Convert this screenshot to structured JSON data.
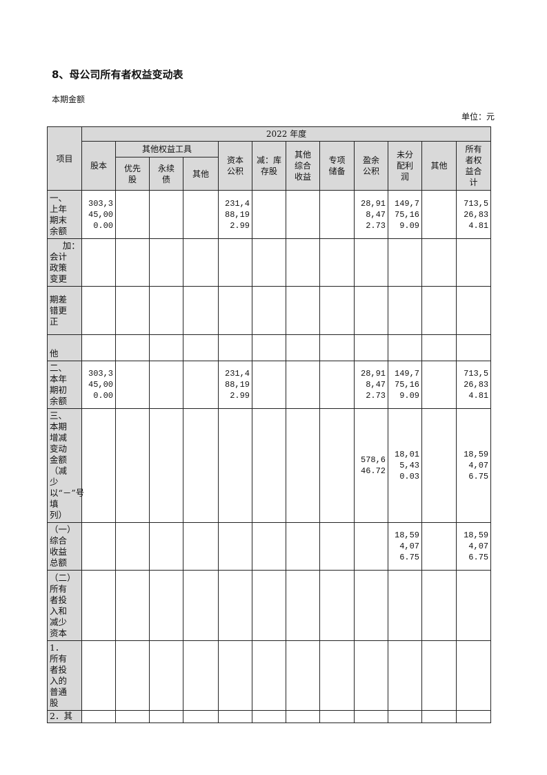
{
  "heading": "8、母公司所有者权益变动表",
  "subheading": "本期金额",
  "unit": "单位：元",
  "table": {
    "year_header": "2022 年度",
    "item_header": "项目",
    "other_equity_header": "其他权益工具",
    "columns": [
      "股本",
      "优先股",
      "永续债",
      "其他",
      "资本公积",
      "减：库存股",
      "其他综合收益",
      "专项储备",
      "盈余公积",
      "未分配利润",
      "其他",
      "所有者权益合计"
    ],
    "rows": [
      {
        "label": "一、上年期末余额",
        "values": [
          "303,345,000.00",
          "",
          "",
          "",
          "231,488,192.99",
          "",
          "",
          "",
          "28,918,472.73",
          "149,775,169.09",
          "",
          "713,526,834.81"
        ]
      },
      {
        "label": "加：会计政策变更",
        "values": [
          "",
          "",
          "",
          "",
          "",
          "",
          "",
          "",
          "",
          "",
          "",
          ""
        ]
      },
      {
        "label": "期差错更正",
        "values": [
          "",
          "",
          "",
          "",
          "",
          "",
          "",
          "",
          "",
          "",
          "",
          ""
        ]
      },
      {
        "label": "他",
        "values": [
          "",
          "",
          "",
          "",
          "",
          "",
          "",
          "",
          "",
          "",
          "",
          ""
        ]
      },
      {
        "label": "二、本年期初余额",
        "values": [
          "303,345,000.00",
          "",
          "",
          "",
          "231,488,192.99",
          "",
          "",
          "",
          "28,918,472.73",
          "149,775,169.09",
          "",
          "713,526,834.81"
        ]
      },
      {
        "label": "三、本期增减变动金额（减少以“－”号填列）",
        "values": [
          "",
          "",
          "",
          "",
          "",
          "",
          "",
          "",
          "578,646.72",
          "18,015,430.03",
          "",
          "18,594,076.75"
        ]
      },
      {
        "label": "（一）综合收益总额",
        "values": [
          "",
          "",
          "",
          "",
          "",
          "",
          "",
          "",
          "",
          "18,594,076.75",
          "",
          "18,594,076.75"
        ]
      },
      {
        "label": "（二）所有者投入和减少资本",
        "values": [
          "",
          "",
          "",
          "",
          "",
          "",
          "",
          "",
          "",
          "",
          "",
          ""
        ]
      },
      {
        "label": "1．所有者投入的普通股",
        "values": [
          "",
          "",
          "",
          "",
          "",
          "",
          "",
          "",
          "",
          "",
          "",
          ""
        ]
      },
      {
        "label": "2．其",
        "values": [
          "",
          "",
          "",
          "",
          "",
          "",
          "",
          "",
          "",
          "",
          "",
          ""
        ]
      }
    ]
  }
}
